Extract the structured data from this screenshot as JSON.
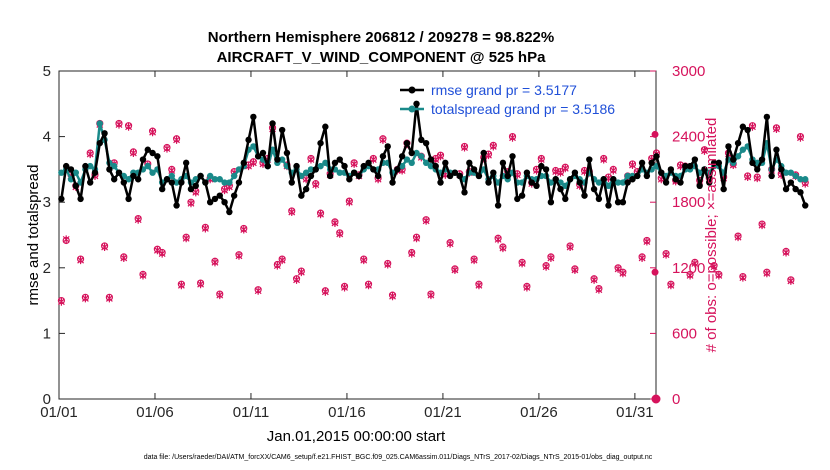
{
  "chart_data": {
    "type": "line",
    "title_line1": "Northern Hemisphere 206812 / 209278 = 98.822%",
    "title_line2": "AIRCRAFT_V_WIND_COMPONENT @ 525 hPa",
    "xlabel": "Jan.01,2015 00:00:00 start",
    "ylabel_left": "rmse and totalspread",
    "ylabel_right": "# of obs: o=possible; ×=assimilated",
    "footnote": "data file: /Users/raeder/DAI/ATM_forcXX/CAM6_setup/f.e21.FHIST_BGC.f09_025.CAM6assim.011/Diags_NTrS_2017-02/Diags_NTrS_2015-01/obs_diag_output.nc",
    "xlim": [
      1,
      32.1
    ],
    "ylim_left": [
      0,
      5
    ],
    "ylim_right": [
      0,
      3000
    ],
    "x_ticks": [
      1,
      6,
      11,
      16,
      21,
      26,
      31
    ],
    "x_tick_labels": [
      "01/01",
      "01/06",
      "01/11",
      "01/16",
      "01/21",
      "01/26",
      "01/31"
    ],
    "y_ticks_left": [
      "0",
      "1",
      "2",
      "3",
      "4",
      "5"
    ],
    "y_ticks_right": [
      "0",
      "600",
      "1200",
      "1800",
      "2400",
      "3000"
    ],
    "colors": {
      "rmse": "#000000",
      "spread": "#1a8a8a",
      "obs": "#d6135c",
      "legend_text": "#1f4fd8"
    },
    "series": [
      {
        "name": "rmse grand pr = 3.5177",
        "x_start": 1.125,
        "x_step": 0.25,
        "values": [
          3.05,
          3.55,
          3.5,
          3.25,
          3.05,
          3.55,
          3.3,
          3.45,
          3.9,
          4.05,
          3.5,
          3.35,
          3.45,
          3.3,
          3.05,
          3.4,
          3.35,
          3.65,
          3.8,
          3.75,
          3.7,
          3.2,
          3.35,
          3.3,
          2.95,
          3.3,
          3.6,
          3.2,
          3.25,
          3.4,
          3.3,
          3.0,
          3.05,
          3.1,
          3.0,
          2.85,
          3.1,
          3.3,
          3.6,
          3.95,
          4.3,
          3.7,
          3.75,
          3.55,
          4.2,
          3.65,
          4.1,
          3.75,
          3.3,
          3.55,
          3.1,
          3.2,
          3.4,
          3.5,
          3.9,
          4.15,
          3.4,
          3.6,
          3.65,
          3.55,
          3.35,
          3.45,
          3.4,
          3.55,
          3.6,
          3.5,
          3.4,
          3.7,
          3.85,
          3.3,
          3.5,
          3.7,
          3.9,
          3.75,
          4.5,
          3.95,
          3.9,
          3.65,
          3.55,
          3.3,
          3.6,
          3.4,
          3.45,
          3.4,
          3.15,
          3.6,
          3.5,
          3.4,
          3.75,
          3.3,
          3.45,
          2.95,
          3.6,
          3.4,
          3.7,
          3.05,
          3.1,
          3.45,
          3.3,
          3.25,
          3.55,
          3.5,
          3.0,
          3.35,
          3.2,
          3.05,
          3.35,
          3.45,
          3.3,
          3.1,
          3.65,
          3.2,
          3.05,
          3.35,
          2.95,
          3.35,
          3.0,
          3.0,
          3.3,
          3.35,
          3.4,
          3.6,
          3.4,
          3.6,
          3.7,
          3.45,
          3.3,
          3.5,
          3.35,
          3.3,
          3.55,
          3.55,
          3.65,
          3.25,
          3.5,
          3.3,
          3.6,
          3.6,
          3.2,
          3.85,
          3.65,
          3.9,
          4.15,
          4.1,
          3.6,
          3.5,
          3.65,
          4.3,
          3.4,
          3.8,
          3.5,
          3.2,
          3.3,
          3.2,
          3.15,
          2.95
        ]
      },
      {
        "name": "totalspread grand pr = 3.5186",
        "x_start": 1.125,
        "x_step": 0.25,
        "values": [
          3.45,
          3.5,
          3.35,
          3.45,
          3.3,
          3.5,
          3.55,
          3.5,
          4.2,
          3.95,
          3.6,
          3.55,
          3.45,
          3.4,
          3.35,
          3.45,
          3.45,
          3.5,
          3.55,
          3.45,
          3.5,
          3.3,
          3.35,
          3.4,
          3.3,
          3.35,
          3.4,
          3.3,
          3.35,
          3.4,
          3.3,
          3.4,
          3.35,
          3.35,
          3.3,
          3.3,
          3.4,
          3.5,
          3.55,
          3.8,
          3.85,
          3.7,
          3.65,
          3.55,
          3.8,
          3.6,
          3.65,
          3.55,
          3.45,
          3.5,
          3.4,
          3.45,
          3.5,
          3.5,
          3.55,
          3.6,
          3.5,
          3.5,
          3.45,
          3.45,
          3.4,
          3.45,
          3.4,
          3.5,
          3.55,
          3.5,
          3.5,
          3.6,
          3.6,
          3.45,
          3.5,
          3.55,
          3.65,
          3.6,
          3.75,
          3.7,
          3.6,
          3.55,
          3.5,
          3.45,
          3.5,
          3.45,
          3.45,
          3.4,
          3.35,
          3.45,
          3.45,
          3.4,
          3.5,
          3.35,
          3.4,
          3.3,
          3.4,
          3.35,
          3.45,
          3.3,
          3.3,
          3.4,
          3.35,
          3.35,
          3.4,
          3.4,
          3.3,
          3.35,
          3.3,
          3.25,
          3.35,
          3.4,
          3.35,
          3.3,
          3.45,
          3.35,
          3.3,
          3.35,
          3.25,
          3.35,
          3.3,
          3.3,
          3.4,
          3.4,
          3.4,
          3.5,
          3.45,
          3.5,
          3.55,
          3.45,
          3.4,
          3.45,
          3.4,
          3.4,
          3.5,
          3.5,
          3.55,
          3.45,
          3.5,
          3.45,
          3.55,
          3.55,
          3.45,
          3.65,
          3.6,
          3.7,
          3.8,
          3.85,
          3.65,
          3.6,
          3.6,
          3.9,
          3.5,
          3.65,
          3.55,
          3.45,
          3.45,
          3.4,
          3.35,
          3.35
        ]
      },
      {
        "name": "possible obs (o)",
        "x_start": 1.125,
        "x_step": 0.25,
        "values": [
          900,
          1450,
          2050,
          1950,
          1280,
          930,
          2250,
          2050,
          2520,
          1400,
          930,
          2160,
          2520,
          1300,
          2500,
          2260,
          1650,
          1140,
          2150,
          2450,
          1370,
          1340,
          2300,
          2100,
          2380,
          1050,
          1480,
          1800,
          1900,
          1060,
          1570,
          2020,
          1260,
          960,
          1920,
          1950,
          2080,
          1320,
          1560,
          2140,
          2170,
          1000,
          2160,
          2200,
          2480,
          1230,
          1280,
          2140,
          1720,
          1100,
          1170,
          2020,
          2200,
          1970,
          1700,
          990,
          2060,
          1620,
          1520,
          1030,
          1810,
          2160,
          2050,
          1280,
          1050,
          2200,
          2020,
          2380,
          1240,
          950,
          2100,
          2100,
          2340,
          1340,
          1480,
          2220,
          1640,
          960,
          2200,
          2230,
          2060,
          1430,
          1190,
          2060,
          2310,
          2080,
          1280,
          1050,
          2210,
          2240,
          2320,
          1470,
          1390,
          2080,
          2400,
          2060,
          1250,
          1030,
          1980,
          2100,
          2200,
          1220,
          1300,
          2090,
          2080,
          2120,
          1400,
          1190,
          1960,
          2090,
          2080,
          1100,
          1010,
          2200,
          2030,
          2100,
          1200,
          1160,
          2040,
          2150,
          2080,
          1300,
          1450,
          2200,
          2250,
          2020,
          1330,
          1050,
          2000,
          2140,
          2130,
          1140,
          1250,
          2000,
          2280,
          2020,
          1220,
          1140,
          2030,
          2250,
          2150,
          1490,
          1120,
          2040,
          2500,
          2030,
          1600,
          1160,
          2100,
          2480,
          2060,
          1350,
          1090,
          2050,
          2400,
          1980
        ]
      },
      {
        "name": "assimilated obs (×)",
        "x_start": 1.125,
        "x_step": 0.25,
        "values": [
          890,
          1460,
          2040,
          1940,
          1270,
          920,
          2240,
          2040,
          2510,
          1390,
          920,
          2150,
          2510,
          1290,
          2490,
          2250,
          1640,
          1130,
          2140,
          2440,
          1360,
          1330,
          2290,
          2090,
          2370,
          1040,
          1470,
          1790,
          1890,
          1050,
          1560,
          2010,
          1250,
          950,
          1910,
          1940,
          2070,
          1310,
          1550,
          2130,
          2160,
          990,
          2150,
          2190,
          2470,
          1220,
          1270,
          2130,
          1710,
          1090,
          1160,
          2010,
          2190,
          1960,
          1690,
          980,
          2050,
          1610,
          1510,
          1020,
          1800,
          2150,
          2040,
          1270,
          1040,
          2190,
          2010,
          2370,
          1230,
          940,
          2090,
          2090,
          2330,
          1330,
          1470,
          2210,
          1630,
          950,
          2190,
          2220,
          2050,
          1420,
          1180,
          2050,
          2300,
          2070,
          1270,
          1040,
          2200,
          2230,
          2310,
          1460,
          1380,
          2070,
          2390,
          2050,
          1240,
          1020,
          1970,
          2090,
          2190,
          1210,
          1290,
          2080,
          2070,
          2110,
          1390,
          1180,
          1950,
          2080,
          2070,
          1090,
          1000,
          2190,
          2020,
          2090,
          1190,
          1150,
          2030,
          2140,
          2070,
          1290,
          1440,
          2190,
          2240,
          2010,
          1320,
          1040,
          1990,
          2130,
          2120,
          1130,
          1240,
          1990,
          2270,
          2010,
          1210,
          1130,
          2020,
          2240,
          2140,
          1480,
          1110,
          2030,
          2490,
          2020,
          1590,
          1150,
          2090,
          2470,
          2050,
          1340,
          1080,
          2040,
          2390,
          1970
        ]
      }
    ],
    "right_axis_points": {
      "x": [
        32.05,
        32.05
      ],
      "values": [
        2420,
        1160
      ],
      "zero_marker": 0
    }
  }
}
